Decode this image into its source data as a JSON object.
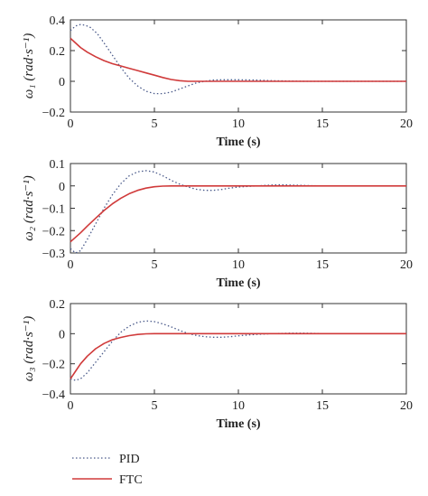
{
  "chart_data": [
    {
      "type": "line",
      "ylabel": "ω₁ (rad·s⁻¹)",
      "xlabel": "Time (s)",
      "xlim": [
        0,
        20
      ],
      "ylim": [
        -0.2,
        0.4
      ],
      "xticks": [
        "0",
        "5",
        "10",
        "15",
        "20"
      ],
      "yticks": [
        "0.4",
        "0.2",
        "0",
        "−0.2"
      ],
      "ytick_values": [
        0.4,
        0.2,
        0,
        -0.2
      ],
      "xtick_values": [
        0,
        5,
        10,
        15,
        20
      ],
      "series": [
        {
          "name": "PID",
          "x": [
            0,
            0.3,
            0.6,
            0.9,
            1.2,
            1.6,
            2.0,
            2.5,
            3.0,
            3.5,
            4.0,
            4.5,
            5.0,
            5.5,
            6.0,
            6.5,
            7.0,
            7.5,
            8.0,
            8.5,
            9.0,
            10.0,
            11.0,
            12.0,
            13.0,
            14.0,
            15.0,
            17.0,
            20.0
          ],
          "y": [
            0.33,
            0.36,
            0.37,
            0.365,
            0.35,
            0.31,
            0.25,
            0.17,
            0.09,
            0.02,
            -0.03,
            -0.065,
            -0.08,
            -0.08,
            -0.07,
            -0.05,
            -0.03,
            -0.01,
            0.0,
            0.008,
            0.01,
            0.01,
            0.008,
            0.004,
            0.002,
            0.0,
            0.0,
            0.0,
            0.0
          ]
        },
        {
          "name": "FTC",
          "x": [
            0,
            0.3,
            0.6,
            1.0,
            1.5,
            2.0,
            2.5,
            3.0,
            3.5,
            4.0,
            4.5,
            5.0,
            5.5,
            6.0,
            6.5,
            7.0,
            8.0,
            10.0,
            15.0,
            20.0
          ],
          "y": [
            0.28,
            0.25,
            0.22,
            0.19,
            0.16,
            0.135,
            0.115,
            0.1,
            0.085,
            0.07,
            0.055,
            0.04,
            0.025,
            0.012,
            0.004,
            0.0,
            0.0,
            0.0,
            0.0,
            0.0
          ]
        }
      ]
    },
    {
      "type": "line",
      "ylabel": "ω₂ (rad·s⁻¹)",
      "xlabel": "Time (s)",
      "xlim": [
        0,
        20
      ],
      "ylim": [
        -0.3,
        0.1
      ],
      "xticks": [
        "0",
        "5",
        "10",
        "15",
        "20"
      ],
      "yticks": [
        "0.1",
        "0",
        "−0.1",
        "−0.2",
        "−0.3"
      ],
      "ytick_values": [
        0.1,
        0,
        -0.1,
        -0.2,
        -0.3
      ],
      "xtick_values": [
        0,
        5,
        10,
        15,
        20
      ],
      "series": [
        {
          "name": "PID",
          "x": [
            0,
            0.3,
            0.6,
            1.0,
            1.5,
            2.0,
            2.5,
            3.0,
            3.5,
            4.0,
            4.5,
            5.0,
            5.5,
            6.0,
            6.5,
            7.0,
            7.5,
            8.0,
            8.5,
            9.0,
            9.5,
            10.0,
            11.0,
            12.0,
            12.5,
            13.0,
            14.0,
            15.0,
            17.0,
            20.0
          ],
          "y": [
            -0.28,
            -0.3,
            -0.29,
            -0.24,
            -0.17,
            -0.1,
            -0.04,
            0.01,
            0.045,
            0.063,
            0.068,
            0.062,
            0.045,
            0.025,
            0.008,
            -0.005,
            -0.015,
            -0.02,
            -0.02,
            -0.016,
            -0.01,
            -0.005,
            0.0,
            0.004,
            0.005,
            0.004,
            0.002,
            0.0,
            0.0,
            0.0
          ]
        },
        {
          "name": "FTC",
          "x": [
            0,
            0.3,
            0.6,
            1.0,
            1.5,
            2.0,
            2.5,
            3.0,
            3.5,
            4.0,
            4.5,
            5.0,
            5.5,
            6.0,
            6.5,
            7.0,
            8.0,
            10.0,
            15.0,
            20.0
          ],
          "y": [
            -0.25,
            -0.23,
            -0.21,
            -0.18,
            -0.145,
            -0.11,
            -0.08,
            -0.055,
            -0.035,
            -0.02,
            -0.01,
            -0.004,
            -0.001,
            0.0,
            0.0,
            0.0,
            0.0,
            0.0,
            0.0,
            0.0
          ]
        }
      ]
    },
    {
      "type": "line",
      "ylabel": "ω₃ (rad·s⁻¹)",
      "xlabel": "Time (s)",
      "xlim": [
        0,
        20
      ],
      "ylim": [
        -0.4,
        0.2
      ],
      "xticks": [
        "0",
        "5",
        "10",
        "15",
        "20"
      ],
      "yticks": [
        "0.2",
        "0",
        "−0.2",
        "−0.4"
      ],
      "ytick_values": [
        0.2,
        0,
        -0.2,
        -0.4
      ],
      "xtick_values": [
        0,
        5,
        10,
        15,
        20
      ],
      "series": [
        {
          "name": "PID",
          "x": [
            0,
            0.3,
            0.6,
            1.0,
            1.5,
            2.0,
            2.5,
            3.0,
            3.5,
            4.0,
            4.5,
            5.0,
            5.5,
            6.0,
            6.5,
            7.0,
            7.5,
            8.0,
            8.5,
            9.0,
            9.5,
            10.0,
            11.0,
            12.0,
            13.0,
            14.0,
            15.0,
            17.0,
            20.0
          ],
          "y": [
            -0.3,
            -0.31,
            -0.3,
            -0.26,
            -0.19,
            -0.12,
            -0.05,
            0.01,
            0.05,
            0.075,
            0.085,
            0.08,
            0.065,
            0.045,
            0.022,
            0.002,
            -0.012,
            -0.02,
            -0.024,
            -0.024,
            -0.02,
            -0.014,
            -0.005,
            0.0,
            0.003,
            0.003,
            0.001,
            0.0,
            0.0
          ]
        },
        {
          "name": "FTC",
          "x": [
            0,
            0.3,
            0.6,
            1.0,
            1.5,
            2.0,
            2.5,
            3.0,
            3.5,
            4.0,
            4.5,
            5.0,
            6.0,
            7.0,
            10.0,
            15.0,
            20.0
          ],
          "y": [
            -0.3,
            -0.25,
            -0.2,
            -0.15,
            -0.1,
            -0.065,
            -0.04,
            -0.025,
            -0.013,
            -0.005,
            -0.001,
            0.0,
            0.0,
            0.0,
            0.0,
            0.0,
            0.0
          ]
        }
      ]
    }
  ],
  "legend": {
    "placement": "bottom-left",
    "items": [
      {
        "label": "PID",
        "style": "dotted",
        "color": "#4a5a8a"
      },
      {
        "label": "FTC",
        "style": "solid",
        "color": "#d03a3a"
      }
    ]
  },
  "colors": {
    "pid": "#4a5a8a",
    "ftc": "#d03a3a",
    "axis": "#333333"
  }
}
